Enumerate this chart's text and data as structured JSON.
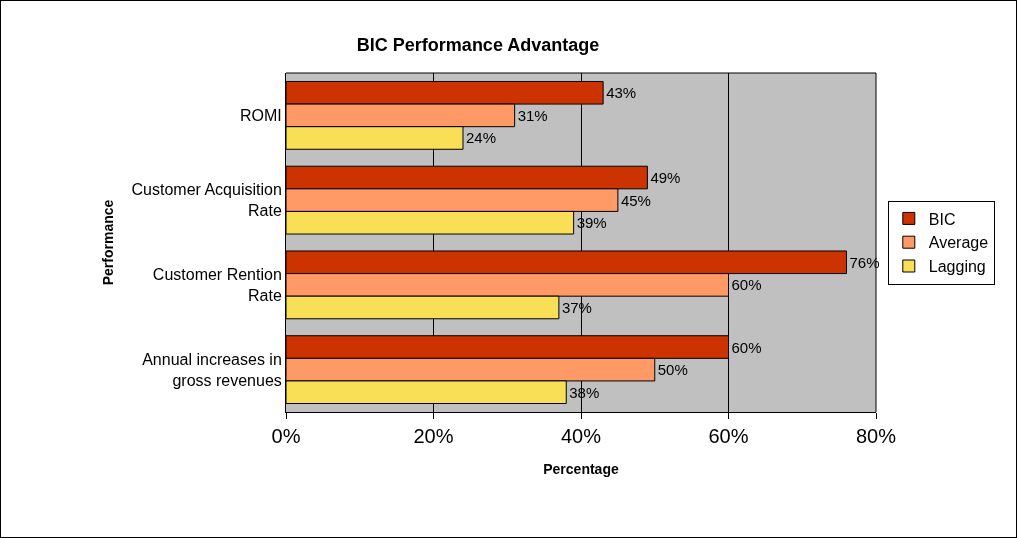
{
  "chart_data": {
    "type": "bar",
    "orientation": "horizontal",
    "title": "BIC Performance Advantage",
    "xlabel": "Percentage",
    "ylabel": "Performance",
    "categories": [
      "ROMI",
      "Customer Acquisition Rate",
      "Customer Rention Rate",
      "Annual increases in gross revenues"
    ],
    "series": [
      {
        "name": "BIC",
        "color": "#cc3300",
        "values": [
          43,
          49,
          76,
          60
        ],
        "value_labels": [
          "43%",
          "49%",
          "76%",
          "60%"
        ]
      },
      {
        "name": "Average",
        "color": "#ff9966",
        "values": [
          31,
          45,
          60,
          50
        ],
        "value_labels": [
          "31%",
          "45%",
          "60%",
          "50%"
        ]
      },
      {
        "name": "Lagging",
        "color": "#f8df55",
        "values": [
          24,
          39,
          37,
          38
        ],
        "value_labels": [
          "24%",
          "39%",
          "37%",
          "38%"
        ]
      }
    ],
    "xlim": [
      0,
      80
    ],
    "xticks": [
      {
        "value": 0,
        "label": "0%"
      },
      {
        "value": 20,
        "label": "20%"
      },
      {
        "value": 40,
        "label": "40%"
      },
      {
        "value": 60,
        "label": "60%"
      },
      {
        "value": 80,
        "label": "80%"
      }
    ],
    "grid": "x",
    "legend": "right"
  }
}
